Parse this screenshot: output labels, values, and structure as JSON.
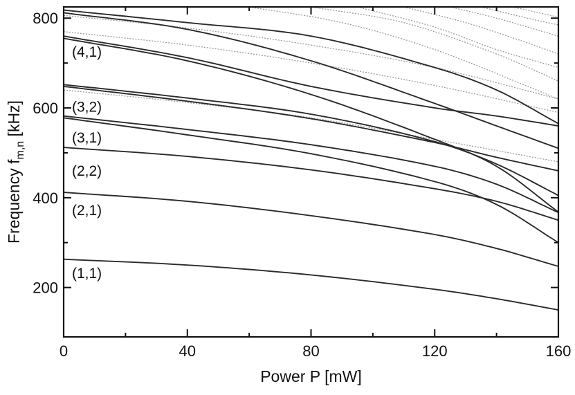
{
  "chart_data": {
    "type": "line",
    "xlabel": "Power P [mW]",
    "ylabel_main": "Frequency f",
    "ylabel_sub": "m,n",
    "ylabel_unit": " [kHz]",
    "xlim": [
      0,
      160
    ],
    "ylim": [
      90,
      825
    ],
    "x_ticks": [
      0,
      40,
      80,
      120,
      160
    ],
    "x_minor_ticks": [
      20,
      60,
      100,
      140
    ],
    "y_ticks": [
      200,
      400,
      600,
      800
    ],
    "y_minor_ticks": [
      300,
      500,
      700
    ],
    "grid": false,
    "line_color": "#2b2b2b",
    "faint_color": "#9a9a9a",
    "labels": [
      {
        "text": "(1,1)",
        "y": 232
      },
      {
        "text": "(2,1)",
        "y": 372
      },
      {
        "text": "(2,2)",
        "y": 460
      },
      {
        "text": "(3,1)",
        "y": 534
      },
      {
        "text": "(3,2)",
        "y": 602
      },
      {
        "text": "(4,1)",
        "y": 725
      }
    ],
    "series": [
      {
        "x": [
          0,
          40,
          80,
          120,
          140,
          160
        ],
        "y": [
          263,
          250,
          228,
          196,
          175,
          150
        ]
      },
      {
        "x": [
          0,
          40,
          80,
          120,
          140,
          160
        ],
        "y": [
          412,
          392,
          360,
          318,
          287,
          247
        ]
      },
      {
        "x": [
          0,
          40,
          80,
          120,
          140,
          160
        ],
        "y": [
          512,
          492,
          462,
          420,
          392,
          350
        ]
      },
      {
        "x": [
          0,
          40,
          80,
          120,
          140,
          160
        ],
        "y": [
          582,
          552,
          518,
          470,
          430,
          367
        ]
      },
      {
        "x": [
          0,
          40,
          80,
          120,
          140,
          160
        ],
        "y": [
          578,
          540,
          498,
          436,
          385,
          300
        ]
      },
      {
        "x": [
          0,
          40,
          80,
          120,
          140,
          160
        ],
        "y": [
          652,
          622,
          586,
          525,
          475,
          405
        ]
      },
      {
        "x": [
          0,
          40,
          80,
          120,
          140,
          160
        ],
        "y": [
          648,
          615,
          576,
          523,
          490,
          460
        ]
      },
      {
        "x": [
          0,
          40,
          80,
          120,
          140,
          160
        ],
        "y": [
          760,
          712,
          648,
          600,
          582,
          560
        ]
      },
      {
        "x": [
          0,
          40,
          80,
          120,
          140,
          160
        ],
        "y": [
          755,
          705,
          630,
          530,
          470,
          368
        ]
      },
      {
        "x": [
          0,
          40,
          80,
          120,
          140,
          160
        ],
        "y": [
          818,
          790,
          760,
          690,
          640,
          565
        ]
      },
      {
        "x": [
          0,
          40,
          80,
          120,
          140,
          160
        ],
        "y": [
          812,
          775,
          705,
          610,
          560,
          510
        ]
      }
    ],
    "faint_series": [
      {
        "x": [
          0,
          40,
          80,
          120,
          160
        ],
        "y": [
          770,
          740,
          700,
          650,
          590
        ]
      },
      {
        "x": [
          0,
          40,
          80,
          120,
          160
        ],
        "y": [
          806,
          778,
          740,
          690,
          620
        ]
      },
      {
        "x": [
          0,
          40,
          80,
          120,
          160
        ],
        "y": [
          640,
          612,
          578,
          530,
          480
        ]
      },
      {
        "x": [
          60,
          90,
          120,
          160
        ],
        "y": [
          825,
          790,
          730,
          620
        ]
      },
      {
        "x": [
          80,
          110,
          140,
          160
        ],
        "y": [
          825,
          790,
          720,
          660
        ]
      },
      {
        "x": [
          95,
          120,
          140,
          160
        ],
        "y": [
          825,
          780,
          730,
          690
        ]
      },
      {
        "x": [
          110,
          130,
          150,
          160
        ],
        "y": [
          825,
          790,
          745,
          720
        ]
      },
      {
        "x": [
          125,
          140,
          155,
          160
        ],
        "y": [
          825,
          800,
          770,
          760
        ]
      },
      {
        "x": [
          135,
          150,
          160
        ],
        "y": [
          825,
          800,
          785
        ]
      },
      {
        "x": [
          145,
          155,
          160
        ],
        "y": [
          825,
          810,
          802
        ]
      }
    ]
  }
}
